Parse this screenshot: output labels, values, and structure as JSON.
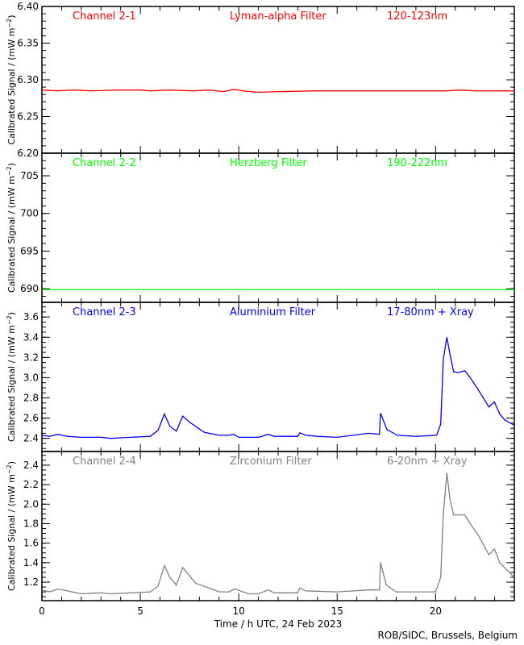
{
  "chart_data": [
    {
      "type": "line",
      "channel": "Channel 2-1",
      "filter": "Lyman-alpha Filter",
      "band": "120-123nm",
      "color": "#ff0000",
      "ylabel": "Calibrated Signal / (mW m",
      "ylabel_sup": "−2",
      "ylabel_end": ")",
      "ylim": [
        6.2,
        6.4
      ],
      "y_major": [
        {
          "v": 6.2,
          "t": "6.20"
        },
        {
          "v": 6.25,
          "t": "6.25"
        },
        {
          "v": 6.3,
          "t": "6.30"
        },
        {
          "v": 6.35,
          "t": "6.35"
        },
        {
          "v": 6.4,
          "t": "6.40"
        }
      ],
      "y_minor_step": 0.01,
      "x": [
        0,
        0.8,
        1.6,
        2.5,
        3.8,
        5,
        5.5,
        6.5,
        7.7,
        8.5,
        9.2,
        9.8,
        10.2,
        11,
        12,
        14,
        16,
        20.5,
        21.3,
        22,
        24
      ],
      "y": [
        6.286,
        6.285,
        6.286,
        6.285,
        6.286,
        6.286,
        6.285,
        6.286,
        6.285,
        6.286,
        6.284,
        6.287,
        6.285,
        6.283,
        6.284,
        6.285,
        6.285,
        6.285,
        6.286,
        6.285,
        6.285
      ]
    },
    {
      "type": "line",
      "channel": "Channel 2-2",
      "filter": "Herzberg Filter",
      "band": "190-222nm",
      "color": "#00ff00",
      "ylabel": "Calibrated Signal / (mW m",
      "ylabel_sup": "−2",
      "ylabel_end": ")",
      "ylim": [
        688.2,
        708.0
      ],
      "y_major": [
        {
          "v": 690,
          "t": "690"
        },
        {
          "v": 695,
          "t": "695"
        },
        {
          "v": 700,
          "t": "700"
        },
        {
          "v": 705,
          "t": "705"
        }
      ],
      "y_minor_step": 1,
      "x": [
        0,
        24
      ],
      "y": [
        689.9,
        689.9
      ]
    },
    {
      "type": "line",
      "channel": "Channel 2-3",
      "filter": "Aluminium Filter",
      "band": "17-80nm + Xray",
      "color": "#0000ff",
      "ylabel": "Calibrated Signal / (mW m",
      "ylabel_sup": "−2",
      "ylabel_end": ")",
      "ylim": [
        2.27,
        3.745
      ],
      "y_major": [
        {
          "v": 2.4,
          "t": "2.4"
        },
        {
          "v": 2.6,
          "t": "2.6"
        },
        {
          "v": 2.8,
          "t": "2.8"
        },
        {
          "v": 3.0,
          "t": "3.0"
        },
        {
          "v": 3.2,
          "t": "3.2"
        },
        {
          "v": 3.4,
          "t": "3.4"
        },
        {
          "v": 3.6,
          "t": "3.6"
        }
      ],
      "y_minor_step": 0.05,
      "x": [
        0,
        0.4,
        0.8,
        1.3,
        2,
        3,
        3.5,
        4.5,
        5.5,
        5.9,
        6.22,
        6.5,
        6.83,
        7.15,
        7.5,
        8.25,
        9,
        9.5,
        9.75,
        10,
        11,
        11.5,
        11.8,
        13,
        13.1,
        13.4,
        14,
        15,
        16.6,
        17.15,
        17.2,
        17.53,
        18.06,
        19,
        20.05,
        20.26,
        20.39,
        20.57,
        20.73,
        20.91,
        21.14,
        21.48,
        21.76,
        22.17,
        22.71,
        22.99,
        23.26,
        23.53,
        24
      ],
      "y": [
        2.43,
        2.42,
        2.44,
        2.42,
        2.41,
        2.41,
        2.4,
        2.41,
        2.42,
        2.48,
        2.64,
        2.52,
        2.47,
        2.62,
        2.56,
        2.46,
        2.43,
        2.43,
        2.44,
        2.41,
        2.41,
        2.44,
        2.42,
        2.42,
        2.455,
        2.43,
        2.42,
        2.41,
        2.45,
        2.44,
        2.65,
        2.487,
        2.43,
        2.42,
        2.43,
        2.54,
        3.18,
        3.4,
        3.23,
        3.06,
        3.05,
        3.07,
        3.0,
        2.88,
        2.71,
        2.76,
        2.64,
        2.58,
        2.53
      ]
    },
    {
      "type": "line",
      "channel": "Channel 2-4",
      "filter": "Zirconium Filter",
      "band": "6-20nm + Xray",
      "color": "#808080",
      "ylabel": "Calibrated Signal / (mW m",
      "ylabel_sup": "−2",
      "ylabel_end": ")",
      "ylim": [
        1.01,
        2.54
      ],
      "y_major": [
        {
          "v": 1.2,
          "t": "1.2"
        },
        {
          "v": 1.4,
          "t": "1.4"
        },
        {
          "v": 1.6,
          "t": "1.6"
        },
        {
          "v": 1.8,
          "t": "1.8"
        },
        {
          "v": 2.0,
          "t": "2.0"
        },
        {
          "v": 2.2,
          "t": "2.2"
        },
        {
          "v": 2.4,
          "t": "2.4"
        }
      ],
      "y_minor_step": 0.05,
      "x": [
        0,
        0.4,
        0.8,
        1.3,
        2,
        3,
        3.5,
        4.5,
        5.5,
        5.9,
        6.22,
        6.5,
        6.83,
        7.15,
        7.8,
        9,
        9.5,
        9.8,
        10.5,
        11,
        11.5,
        11.8,
        13,
        13.1,
        13.4,
        15,
        16.6,
        17.15,
        17.2,
        17.5,
        18,
        20,
        20.26,
        20.39,
        20.57,
        20.73,
        20.91,
        21.48,
        21.76,
        22.17,
        22.71,
        22.99,
        23.26,
        23.94,
        24
      ],
      "y": [
        1.12,
        1.1,
        1.13,
        1.11,
        1.08,
        1.09,
        1.08,
        1.09,
        1.1,
        1.16,
        1.37,
        1.25,
        1.17,
        1.35,
        1.19,
        1.1,
        1.1,
        1.13,
        1.08,
        1.08,
        1.12,
        1.09,
        1.09,
        1.14,
        1.11,
        1.1,
        1.12,
        1.12,
        1.4,
        1.17,
        1.1,
        1.1,
        1.25,
        1.9,
        2.32,
        2.05,
        1.89,
        1.89,
        1.8,
        1.68,
        1.48,
        1.54,
        1.4,
        1.26,
        1.25
      ]
    }
  ],
  "x_axis": {
    "label": "Time / h UTC, 24 Feb 2023",
    "xlim": [
      0,
      24
    ],
    "ticks": [
      {
        "v": 0,
        "t": "0"
      },
      {
        "v": 5,
        "t": "5"
      },
      {
        "v": 10,
        "t": "10"
      },
      {
        "v": 15,
        "t": "15"
      },
      {
        "v": 20,
        "t": "20"
      }
    ],
    "minor_step": 1
  },
  "credit": "ROB/SIDC, Brussels, Belgium"
}
